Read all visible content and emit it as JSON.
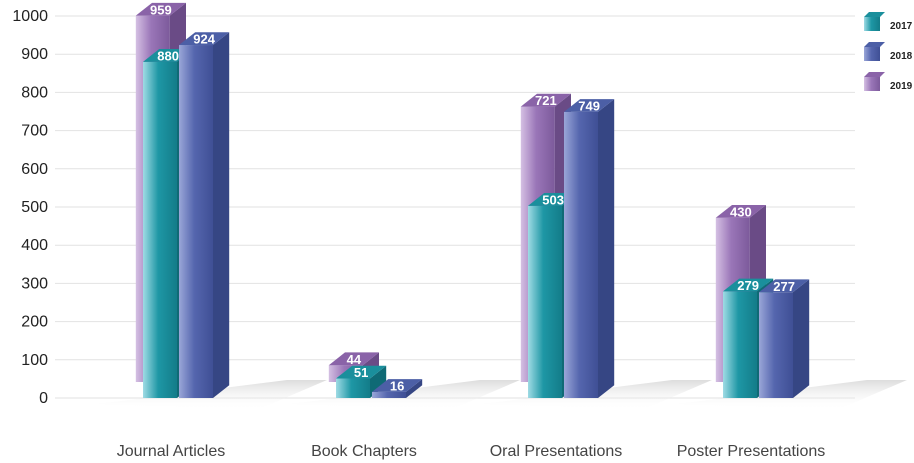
{
  "chart_data": {
    "type": "bar",
    "title": "",
    "xlabel": "",
    "ylabel": "",
    "categories": [
      "Journal Articles",
      "Book Chapters",
      "Oral Presentations",
      "Poster Presentations"
    ],
    "series": [
      {
        "name": "2017",
        "values": [
          880,
          51,
          503,
          279
        ]
      },
      {
        "name": "2018",
        "values": [
          924,
          16,
          749,
          277
        ]
      },
      {
        "name": "2019",
        "values": [
          959,
          44,
          721,
          430
        ]
      }
    ],
    "yticks": [
      0,
      100,
      200,
      300,
      400,
      500,
      600,
      700,
      800,
      900,
      1000
    ],
    "ylim": [
      0,
      1000
    ],
    "grid": true,
    "legend_position": "top-right",
    "style": "3d-clustered-bars",
    "colors": {
      "2017": "#1a8f9c",
      "2018": "#4c5fa6",
      "2019": "#8a63a8"
    }
  }
}
